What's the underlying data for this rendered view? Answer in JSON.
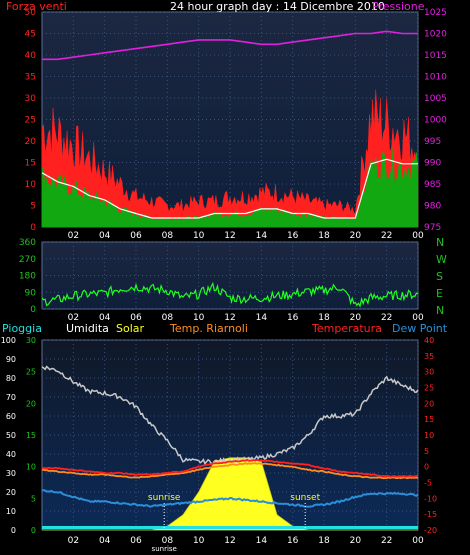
{
  "title": "24 hour graph day : 14 Dicembre 2010",
  "colors": {
    "wind": "#ff2020",
    "gust_green": "#11a811",
    "white_line": "#ffffff",
    "pressure": "#e020e0",
    "direction": "#20ff20",
    "humidity": "#c8c8c8",
    "solar": "#ffff20",
    "tempRiarnoli": "#ff8c20",
    "temperature": "#ff2020",
    "dewpoint": "#2a8fd8",
    "rain": "#20e0e0",
    "axis_text": "#20c020"
  },
  "chart_data": [
    {
      "type": "area",
      "title": "24 hour graph day : 14 Dicembre 2010",
      "legend_left": "Forza venti",
      "legend_right": "Pressione",
      "x_tick_labels": [
        "02",
        "04",
        "06",
        "08",
        "10",
        "12",
        "14",
        "16",
        "18",
        "20",
        "22",
        "00"
      ],
      "y_left_ticks": [
        0,
        5,
        10,
        15,
        20,
        25,
        30,
        35,
        40,
        45,
        50
      ],
      "y_right_ticks": [
        975,
        980,
        985,
        990,
        995,
        1000,
        1005,
        1010,
        1015,
        1020,
        1025
      ],
      "ylim_left": [
        0,
        50
      ],
      "ylim_right": [
        975,
        1025
      ],
      "hours": [
        0,
        1,
        2,
        3,
        4,
        5,
        6,
        7,
        8,
        9,
        10,
        11,
        12,
        13,
        14,
        15,
        16,
        17,
        18,
        19,
        20,
        21,
        22,
        23,
        24
      ],
      "series": [
        {
          "name": "Pressione",
          "axis": "right",
          "values": [
            1014,
            1014,
            1014.5,
            1015,
            1015.5,
            1016,
            1016.5,
            1017,
            1017.5,
            1018,
            1018.5,
            1018.5,
            1018.5,
            1018,
            1017.5,
            1017.5,
            1018,
            1018.5,
            1019,
            1019.5,
            1020,
            1020,
            1020.5,
            1020,
            1020
          ]
        },
        {
          "name": "Forza venti (raffica)",
          "axis": "left",
          "values": [
            23,
            22,
            19,
            16,
            13,
            10,
            7,
            6,
            5,
            5,
            6,
            6,
            7,
            7,
            8,
            8,
            7,
            6,
            5,
            5,
            4,
            26,
            24,
            22,
            18
          ]
        },
        {
          "name": "Forza venti (media)",
          "axis": "left",
          "values": [
            12,
            10,
            9,
            7,
            6,
            4,
            3,
            2,
            2,
            2,
            2,
            3,
            3,
            3,
            4,
            4,
            3,
            3,
            2,
            2,
            2,
            14,
            15,
            14,
            14
          ]
        },
        {
          "name": "Forza venti (min)",
          "axis": "left",
          "values": [
            6,
            5,
            4,
            3,
            3,
            2,
            1,
            1,
            1,
            1,
            1,
            1,
            1,
            1,
            2,
            2,
            1,
            1,
            1,
            1,
            1,
            7,
            8,
            7,
            6
          ]
        }
      ]
    },
    {
      "type": "line",
      "title": "",
      "y_ticks": [
        0,
        90,
        180,
        270,
        360
      ],
      "ylim": [
        0,
        360
      ],
      "right_labels": [
        "N",
        "W",
        "S",
        "E",
        "N"
      ],
      "x_tick_labels": [
        "02",
        "04",
        "06",
        "08",
        "10",
        "12",
        "14",
        "16",
        "18",
        "20",
        "22",
        "00"
      ],
      "hours": [
        0,
        1,
        2,
        3,
        4,
        5,
        6,
        7,
        8,
        9,
        10,
        11,
        12,
        13,
        14,
        15,
        16,
        17,
        18,
        19,
        20,
        21,
        22,
        23,
        24
      ],
      "series": [
        {
          "name": "Direzione vento",
          "values": [
            40,
            50,
            70,
            80,
            85,
            110,
            120,
            110,
            100,
            60,
            80,
            120,
            60,
            55,
            60,
            70,
            80,
            95,
            100,
            120,
            20,
            60,
            70,
            75,
            80
          ]
        }
      ]
    },
    {
      "type": "line",
      "legend": [
        "Pioggia",
        "Umidita",
        "Solar",
        "Temp. Riarnoli",
        "Temperatura",
        "Dew Point"
      ],
      "x_tick_labels": [
        "02",
        "04",
        "06",
        "08",
        "10",
        "12",
        "14",
        "16",
        "18",
        "20",
        "22",
        "00"
      ],
      "sunrise_label": "sunrise",
      "sunset_label": "sunset",
      "sunrise_hour": 7.8,
      "sunset_hour": 16.8,
      "y_left1_ticks": [
        0,
        10,
        20,
        30,
        40,
        50,
        60,
        70,
        80,
        90,
        100
      ],
      "y_left2_ticks": [
        0,
        5,
        10,
        15,
        20,
        25,
        30
      ],
      "y_right_ticks": [
        -20,
        -15,
        -10,
        -5,
        0,
        5,
        10,
        15,
        20,
        25,
        30,
        35,
        40
      ],
      "ylim_humidity": [
        0,
        100
      ],
      "ylim_temp": [
        -20,
        40
      ],
      "hours": [
        0,
        1,
        2,
        3,
        4,
        5,
        6,
        7,
        8,
        9,
        10,
        11,
        12,
        13,
        14,
        15,
        16,
        17,
        18,
        19,
        20,
        21,
        22,
        23,
        24
      ],
      "series": [
        {
          "name": "Umidita",
          "axis": "humidity",
          "values": [
            86,
            84,
            78,
            73,
            72,
            70,
            65,
            55,
            47,
            37,
            36,
            36,
            37,
            37,
            38,
            40,
            43,
            50,
            60,
            60,
            61,
            72,
            80,
            76,
            73
          ]
        },
        {
          "name": "Temperatura",
          "axis": "temp",
          "values": [
            -0.5,
            -0.5,
            -1,
            -1.5,
            -2,
            -2,
            -2.5,
            -2.5,
            -2,
            -1.5,
            0,
            1,
            1.5,
            2,
            2,
            1.5,
            1,
            0.5,
            -0.5,
            -1.5,
            -2,
            -2.5,
            -3,
            -3,
            -3
          ]
        },
        {
          "name": "Temp. Riarnoli",
          "axis": "temp",
          "values": [
            -1,
            -1.5,
            -2,
            -2.5,
            -2.5,
            -3,
            -3.5,
            -3,
            -2.5,
            -2,
            -1,
            0,
            0.5,
            1,
            1,
            0.5,
            0,
            -1,
            -1.5,
            -2.5,
            -3,
            -3.5,
            -3.5,
            -3.5,
            -3.5
          ]
        },
        {
          "name": "Dew Point",
          "axis": "temp",
          "values": [
            -7.5,
            -8,
            -9.5,
            -11,
            -11,
            -11.5,
            -12,
            -12.5,
            -12,
            -11.5,
            -11,
            -10.5,
            -10,
            -10.5,
            -11,
            -11.5,
            -12,
            -12.5,
            -12,
            -11,
            -9.5,
            -8.5,
            -8.5,
            -8.5,
            -9
          ]
        },
        {
          "name": "Solar",
          "axis": "humidity",
          "values": [
            0,
            0,
            0,
            0,
            0,
            0,
            0,
            0,
            2,
            8,
            20,
            36,
            38,
            38,
            36,
            8,
            2,
            0,
            0,
            0,
            0,
            0,
            0,
            0,
            0
          ]
        },
        {
          "name": "Pioggia",
          "axis": "humidity",
          "values": [
            0,
            0,
            0,
            0,
            0,
            0,
            0,
            0,
            0,
            0,
            0,
            0,
            0,
            0,
            0,
            0,
            0,
            0,
            0,
            0,
            0,
            0,
            0,
            0,
            0
          ]
        }
      ]
    }
  ]
}
